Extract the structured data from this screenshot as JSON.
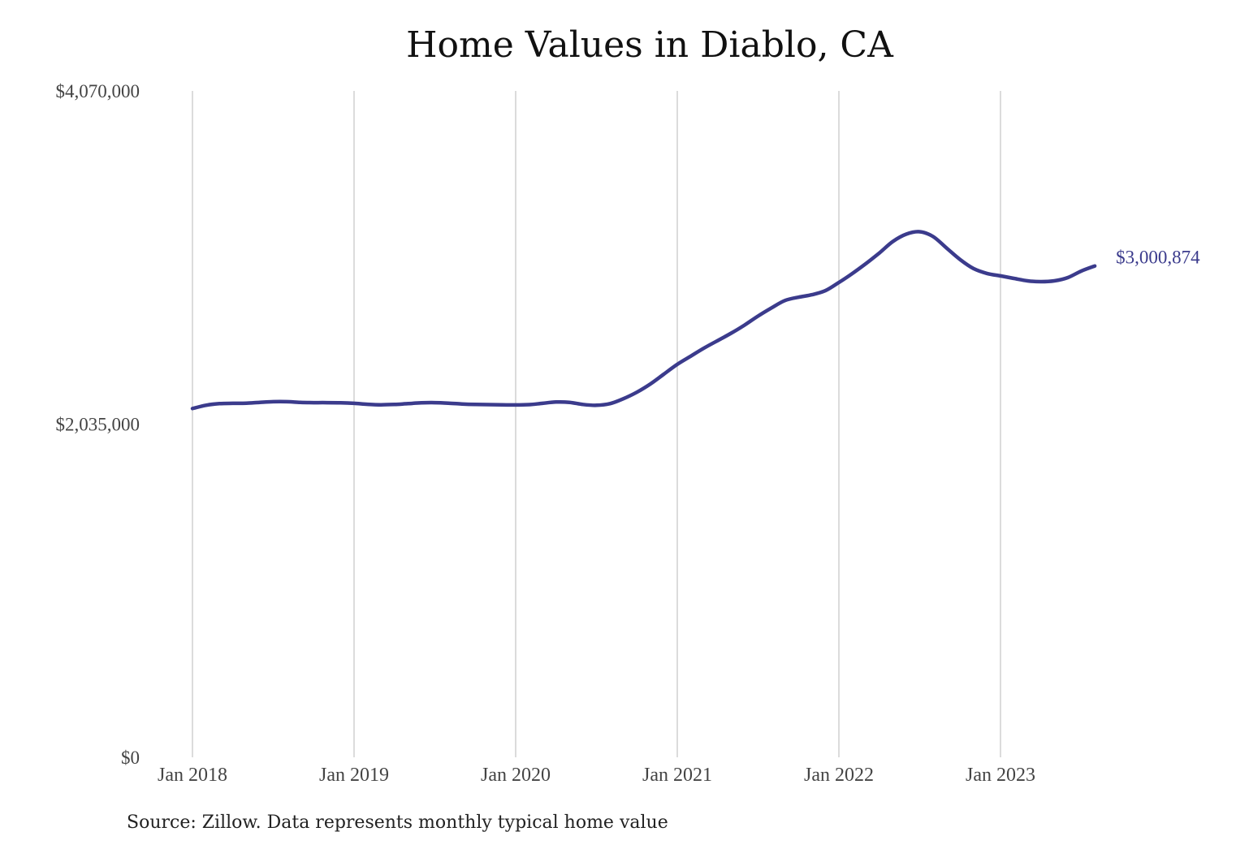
{
  "chart_data": {
    "type": "line",
    "title": "Home Values in Diablo, CA",
    "source": "Source: Zillow. Data represents monthly typical home value",
    "xlabel": "",
    "ylabel": "",
    "ylim": [
      0,
      4070000
    ],
    "y_ticks": [
      {
        "value": 0,
        "label": "$0"
      },
      {
        "value": 2035000,
        "label": "$2,035,000"
      },
      {
        "value": 4070000,
        "label": "$4,070,000"
      }
    ],
    "x_range": [
      "2018-01",
      "2023-08"
    ],
    "x_ticks": [
      {
        "date": "2018-01",
        "label": "Jan 2018"
      },
      {
        "date": "2019-01",
        "label": "Jan 2019"
      },
      {
        "date": "2020-01",
        "label": "Jan 2020"
      },
      {
        "date": "2021-01",
        "label": "Jan 2021"
      },
      {
        "date": "2022-01",
        "label": "Jan 2022"
      },
      {
        "date": "2023-01",
        "label": "Jan 2023"
      }
    ],
    "grid": "vertical",
    "line_color": "#3b3b8c",
    "end_label": "$3,000,874",
    "series": [
      {
        "points": [
          [
            "2018-01",
            2130000
          ],
          [
            "2018-02",
            2150000
          ],
          [
            "2018-03",
            2160000
          ],
          [
            "2018-04",
            2162000
          ],
          [
            "2018-05",
            2163000
          ],
          [
            "2018-06",
            2168000
          ],
          [
            "2018-07",
            2172000
          ],
          [
            "2018-08",
            2172000
          ],
          [
            "2018-09",
            2168000
          ],
          [
            "2018-10",
            2166000
          ],
          [
            "2018-11",
            2166000
          ],
          [
            "2018-12",
            2165000
          ],
          [
            "2019-01",
            2162000
          ],
          [
            "2019-02",
            2156000
          ],
          [
            "2019-03",
            2153000
          ],
          [
            "2019-04",
            2155000
          ],
          [
            "2019-05",
            2160000
          ],
          [
            "2019-06",
            2165000
          ],
          [
            "2019-07",
            2166000
          ],
          [
            "2019-08",
            2163000
          ],
          [
            "2019-09",
            2158000
          ],
          [
            "2019-10",
            2155000
          ],
          [
            "2019-11",
            2154000
          ],
          [
            "2019-12",
            2153000
          ],
          [
            "2020-01",
            2152000
          ],
          [
            "2020-02",
            2154000
          ],
          [
            "2020-03",
            2162000
          ],
          [
            "2020-04",
            2170000
          ],
          [
            "2020-05",
            2168000
          ],
          [
            "2020-06",
            2155000
          ],
          [
            "2020-07",
            2150000
          ],
          [
            "2020-08",
            2160000
          ],
          [
            "2020-09",
            2190000
          ],
          [
            "2020-10",
            2230000
          ],
          [
            "2020-11",
            2280000
          ],
          [
            "2020-12",
            2340000
          ],
          [
            "2021-01",
            2400000
          ],
          [
            "2021-02",
            2450000
          ],
          [
            "2021-03",
            2500000
          ],
          [
            "2021-04",
            2545000
          ],
          [
            "2021-05",
            2590000
          ],
          [
            "2021-06",
            2640000
          ],
          [
            "2021-07",
            2695000
          ],
          [
            "2021-08",
            2745000
          ],
          [
            "2021-09",
            2790000
          ],
          [
            "2021-10",
            2810000
          ],
          [
            "2021-11",
            2825000
          ],
          [
            "2021-12",
            2850000
          ],
          [
            "2022-01",
            2900000
          ],
          [
            "2022-02",
            2955000
          ],
          [
            "2022-03",
            3015000
          ],
          [
            "2022-04",
            3080000
          ],
          [
            "2022-05",
            3150000
          ],
          [
            "2022-06",
            3195000
          ],
          [
            "2022-07",
            3210000
          ],
          [
            "2022-08",
            3180000
          ],
          [
            "2022-09",
            3110000
          ],
          [
            "2022-10",
            3040000
          ],
          [
            "2022-11",
            2985000
          ],
          [
            "2022-12",
            2955000
          ],
          [
            "2023-01",
            2940000
          ],
          [
            "2023-02",
            2925000
          ],
          [
            "2023-03",
            2910000
          ],
          [
            "2023-04",
            2905000
          ],
          [
            "2023-05",
            2910000
          ],
          [
            "2023-06",
            2930000
          ],
          [
            "2023-07",
            2970000
          ],
          [
            "2023-08",
            3000874
          ]
        ]
      }
    ]
  }
}
